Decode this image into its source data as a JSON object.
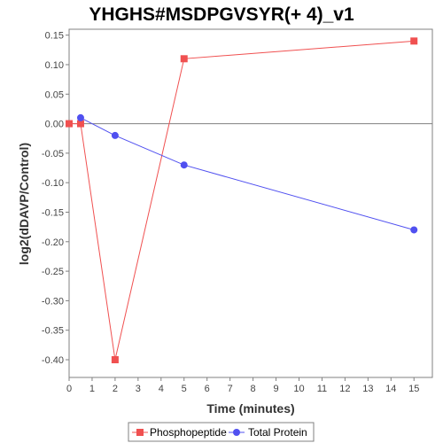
{
  "colors": {
    "phospho": "#f05050",
    "protein": "#5050f0",
    "zero_line": "#808080",
    "axis": "#808080"
  },
  "chart_data": {
    "type": "line",
    "title": "YHGHS#MSDPGVSYR(+ 4)_v1",
    "xlabel": "Time (minutes)",
    "ylabel": "log2(dDAVP/Control)",
    "xlim": [
      0,
      15.8
    ],
    "ylim": [
      -0.43,
      0.16
    ],
    "xticks": [
      0,
      1,
      2,
      3,
      4,
      5,
      6,
      7,
      8,
      9,
      10,
      11,
      12,
      13,
      14,
      15
    ],
    "xtick_labels": [
      "0",
      "1",
      "2",
      "3",
      "4",
      "5",
      "6",
      "7",
      "8",
      "9",
      "10",
      "11",
      "12",
      "13",
      "14",
      "15"
    ],
    "yticks": [
      0.15,
      0.1,
      0.05,
      0.0,
      -0.05,
      -0.1,
      -0.15,
      -0.2,
      -0.25,
      -0.3,
      -0.35,
      -0.4
    ],
    "ytick_labels": [
      "0.15",
      "0.10",
      "0.05",
      "0.00",
      "-0.05",
      "-0.10",
      "-0.15",
      "-0.20",
      "-0.25",
      "-0.30",
      "-0.35",
      "-0.40"
    ],
    "grid": false,
    "legend_position": "bottom",
    "series": [
      {
        "name": "Phosphopeptide",
        "marker": "square",
        "color_key": "phospho",
        "x": [
          0,
          0.5,
          2,
          5,
          15
        ],
        "y": [
          0.0,
          0.0,
          -0.4,
          0.11,
          0.14
        ]
      },
      {
        "name": "Total Protein",
        "marker": "circle",
        "color_key": "protein",
        "x": [
          0.5,
          2,
          5,
          15
        ],
        "y": [
          0.01,
          -0.02,
          -0.07,
          -0.18
        ]
      }
    ]
  }
}
